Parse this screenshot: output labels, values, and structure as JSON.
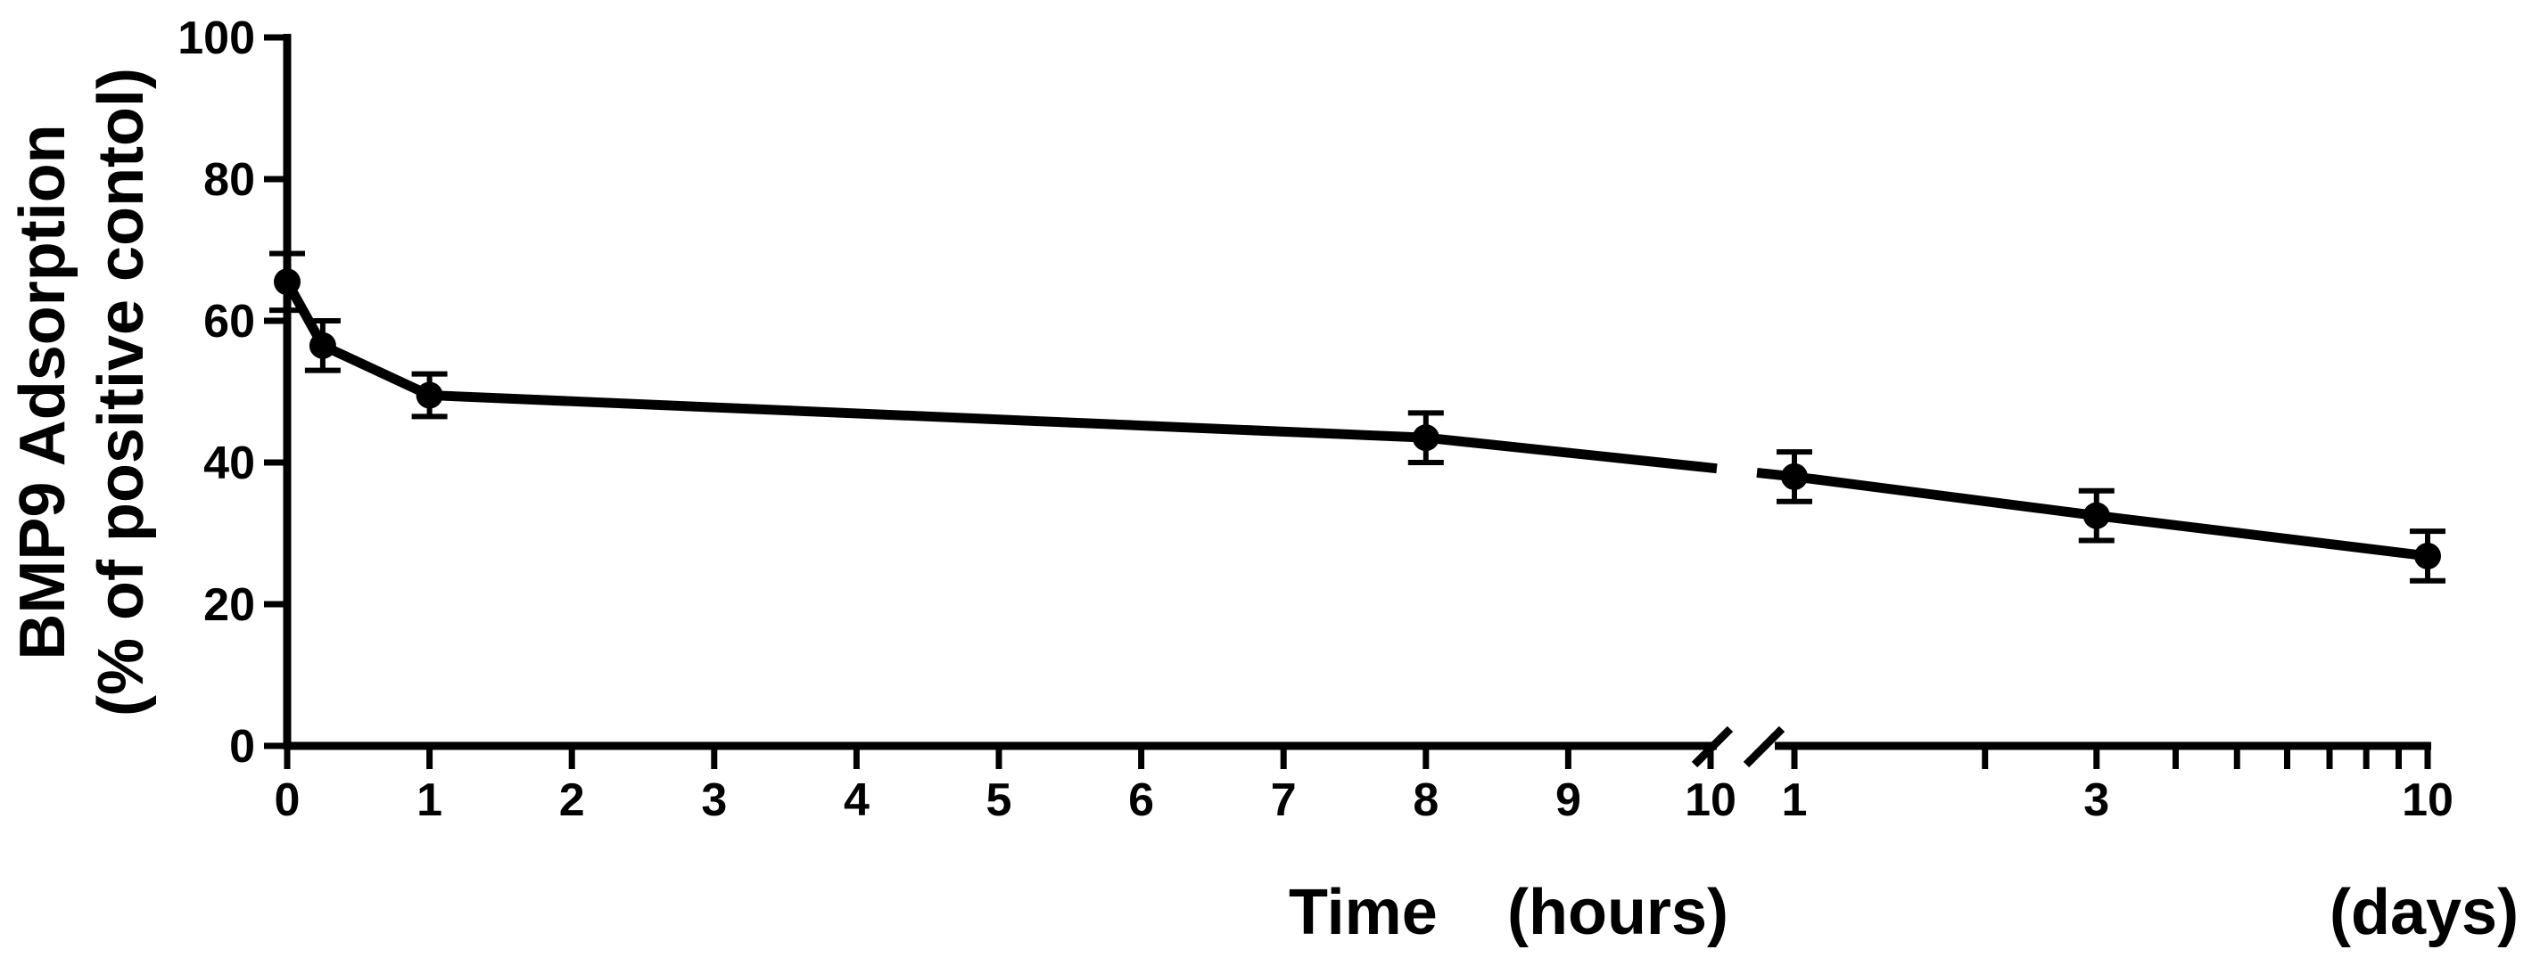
{
  "chart_data": {
    "type": "line",
    "ylabel_line1": "BMP9 Adsorption",
    "ylabel_line2": "(% of positive contol)",
    "xlabel_time": "Time",
    "xlabel_hours": "(hours)",
    "xlabel_days": "(days)",
    "ylim": [
      0,
      100
    ],
    "yticks": [
      0,
      20,
      40,
      60,
      80,
      100
    ],
    "axis_break": true,
    "hours_axis": {
      "range": [
        0,
        10
      ],
      "ticks": [
        0,
        1,
        2,
        3,
        4,
        5,
        6,
        7,
        8,
        9,
        10
      ],
      "labels": [
        "0",
        "1",
        "2",
        "3",
        "4",
        "5",
        "6",
        "7",
        "8",
        "9",
        "10"
      ]
    },
    "days_axis": {
      "range": [
        1,
        10
      ],
      "ticks": [
        1,
        2,
        3,
        4,
        5,
        6,
        7,
        8,
        9,
        10
      ],
      "labels": [
        "1",
        "",
        "3",
        "",
        "",
        "",
        "",
        "",
        "",
        "10"
      ],
      "scale": "log"
    },
    "series": [
      {
        "segment_hours": {
          "x": [
            0,
            0.25,
            1,
            8
          ],
          "y": [
            65.5,
            56.5,
            49.5,
            43.5
          ],
          "err": [
            4.0,
            3.5,
            3.0,
            3.5
          ]
        },
        "segment_days": {
          "x": [
            1,
            3,
            10
          ],
          "y": [
            38,
            32.5,
            26.8
          ],
          "err": [
            3.5,
            3.5,
            3.5
          ]
        }
      }
    ]
  }
}
